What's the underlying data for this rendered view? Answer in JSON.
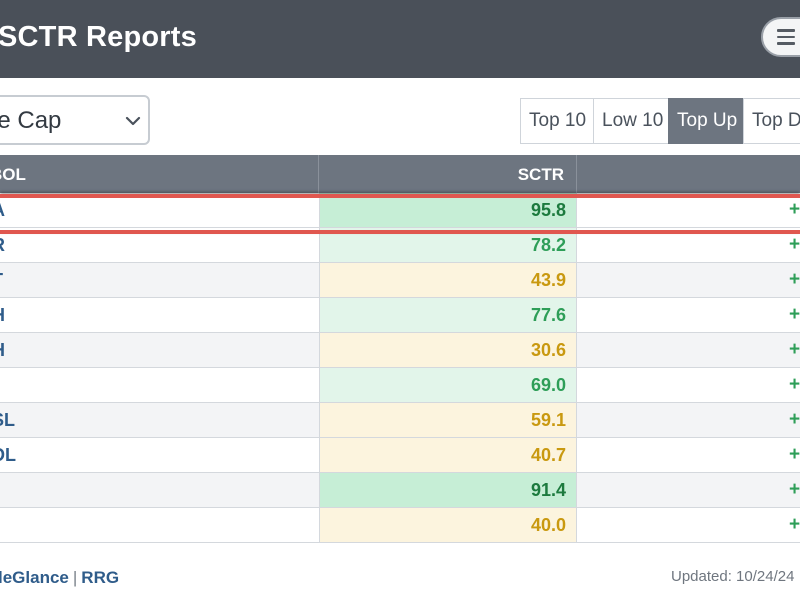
{
  "header": {
    "title": "SCTR Reports",
    "menu_icon": "hamburger-icon"
  },
  "controls": {
    "cap_select_value": "rge Cap",
    "filters": [
      "Top 10",
      "Low 10",
      "Top Up",
      "Top D"
    ],
    "active_filter": "Top Up"
  },
  "table": {
    "columns": {
      "symbol": "BOL",
      "sctr": "SCTR"
    },
    "rows": [
      {
        "symbol": "A",
        "sctr": "95.8",
        "change": "+"
      },
      {
        "symbol": "R",
        "sctr": "78.2",
        "change": "+"
      },
      {
        "symbol": "T",
        "sctr": "43.9",
        "change": "+"
      },
      {
        "symbol": "H",
        "sctr": "77.6",
        "change": "+"
      },
      {
        "symbol": "H",
        "sctr": "30.6",
        "change": "+"
      },
      {
        "symbol": "",
        "sctr": "69.0",
        "change": "+"
      },
      {
        "symbol": "SL",
        "sctr": "59.1",
        "change": "+"
      },
      {
        "symbol": "DL",
        "sctr": "40.7",
        "change": "+"
      },
      {
        "symbol": "",
        "sctr": "91.4",
        "change": "+"
      },
      {
        "symbol": "",
        "sctr": "40.0",
        "change": "+"
      }
    ]
  },
  "footer": {
    "link1": "leGlance",
    "separator": "|",
    "link2": "RRG",
    "updated": "Updated: 10/24/24"
  },
  "colors": {
    "header_bg": "#4a5059",
    "highlight": "#e0574f",
    "sctr_green": "#2e9e58",
    "sctr_gold": "#c99910"
  }
}
